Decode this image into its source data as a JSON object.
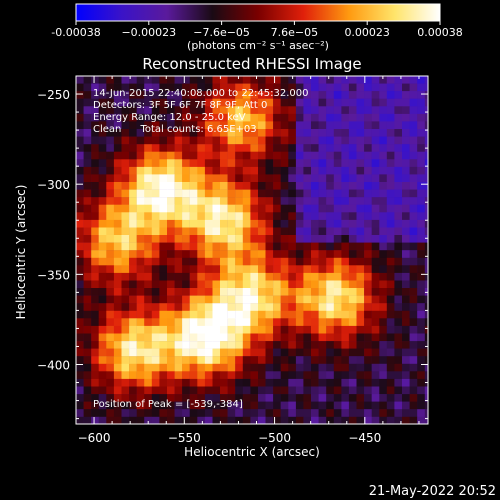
{
  "chart_data": {
    "type": "heatmap",
    "title": "Reconstructed RHESSI Image",
    "xlabel": "Heliocentric X (arcsec)",
    "ylabel": "Heliocentric Y (arcsec)",
    "xlim": [
      -610,
      -415
    ],
    "ylim": [
      -433,
      -240
    ],
    "xticks": [
      -600,
      -550,
      -500,
      -450
    ],
    "yticks": [
      -250,
      -300,
      -350,
      -400
    ],
    "xtick_labels": [
      "−600",
      "−550",
      "−500",
      "−450"
    ],
    "ytick_labels": [
      "−250",
      "−300",
      "−350",
      "−400"
    ],
    "colorbar": {
      "range": [
        -0.00038,
        0.00038
      ],
      "tick_labels": [
        "-0.00038",
        "−0.00023",
        "−7.6e−05",
        "7.6e−05",
        "0.00023",
        "0.00038"
      ],
      "unit_label": "(photons cm⁻² s⁻¹ asec⁻²)",
      "colors": [
        "#0000ff",
        "#3a13c8",
        "#5a1a9c",
        "#1a0a14",
        "#7a0000",
        "#e0200a",
        "#ff9a10",
        "#ffe46a",
        "#ffffff"
      ]
    },
    "annotations": [
      "14-Jun-2015 22:40:08.000 to 22:45:32.000",
      "Detectors: 3F 5F 6F 7F 8F 9F, Att 0",
      "Energy Range: 12.0 - 25.0 keV",
      "Clean      Total counts: 6.65E+03"
    ],
    "peak_label": "Position of Peak = [-539,-384]",
    "peak": [
      -539,
      -384
    ],
    "sources": [
      {
        "x": -565,
        "y": -300,
        "value": 0.00036
      },
      {
        "x": -540,
        "y": -383,
        "value": 0.00038
      },
      {
        "x": -580,
        "y": -390,
        "value": 0.0003
      },
      {
        "x": -530,
        "y": -318,
        "value": 0.00031
      },
      {
        "x": -515,
        "y": -360,
        "value": 0.00029
      },
      {
        "x": -468,
        "y": -361,
        "value": 0.00031
      },
      {
        "x": -520,
        "y": -262,
        "value": 0.00024
      },
      {
        "x": -590,
        "y": -330,
        "value": 0.00024
      }
    ]
  },
  "footer": {
    "date": "21-May-2022 20:52"
  }
}
